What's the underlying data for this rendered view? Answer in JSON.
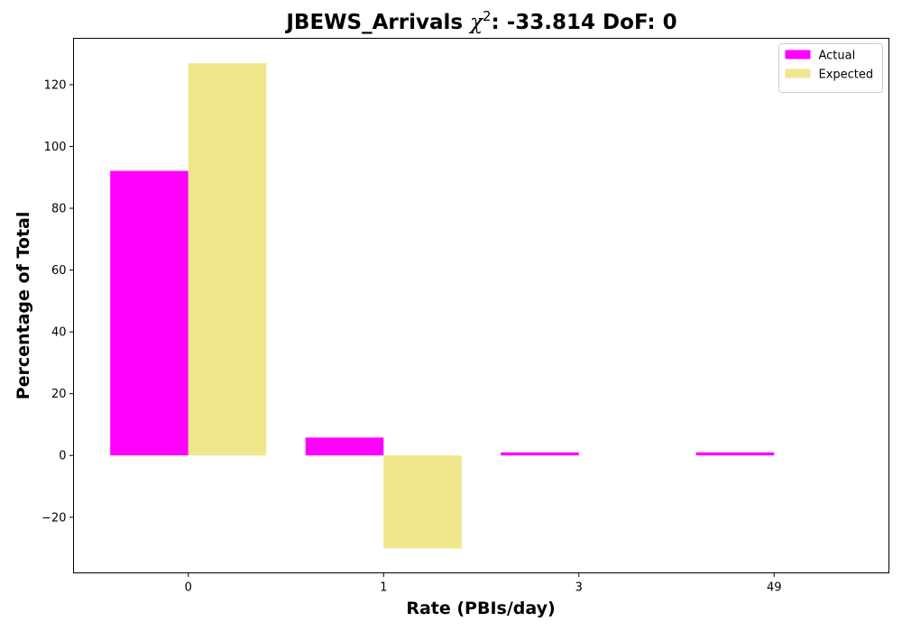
{
  "chart_data": {
    "type": "bar",
    "title": {
      "prefix": "JBEWS_Arrivals ",
      "chi_symbol": "χ",
      "chi_superscript": "2",
      "suffix": ": -33.814 DoF: 0"
    },
    "xlabel": "Rate (PBIs/day)",
    "ylabel": "Percentage of Total",
    "categories": [
      "0",
      "1",
      "3",
      "49"
    ],
    "series": [
      {
        "name": "Actual",
        "values": [
          92.1,
          5.8,
          1.0,
          1.0
        ],
        "color": "#ff00ff"
      },
      {
        "name": "Expected",
        "values": [
          126.9,
          -30.1,
          0,
          0
        ],
        "color": "#f0e68c"
      }
    ],
    "ylim": [
      -38,
      135
    ],
    "yticks": [
      -20,
      0,
      20,
      40,
      60,
      80,
      100,
      120
    ],
    "legend_position": "top-right",
    "grid": false
  }
}
